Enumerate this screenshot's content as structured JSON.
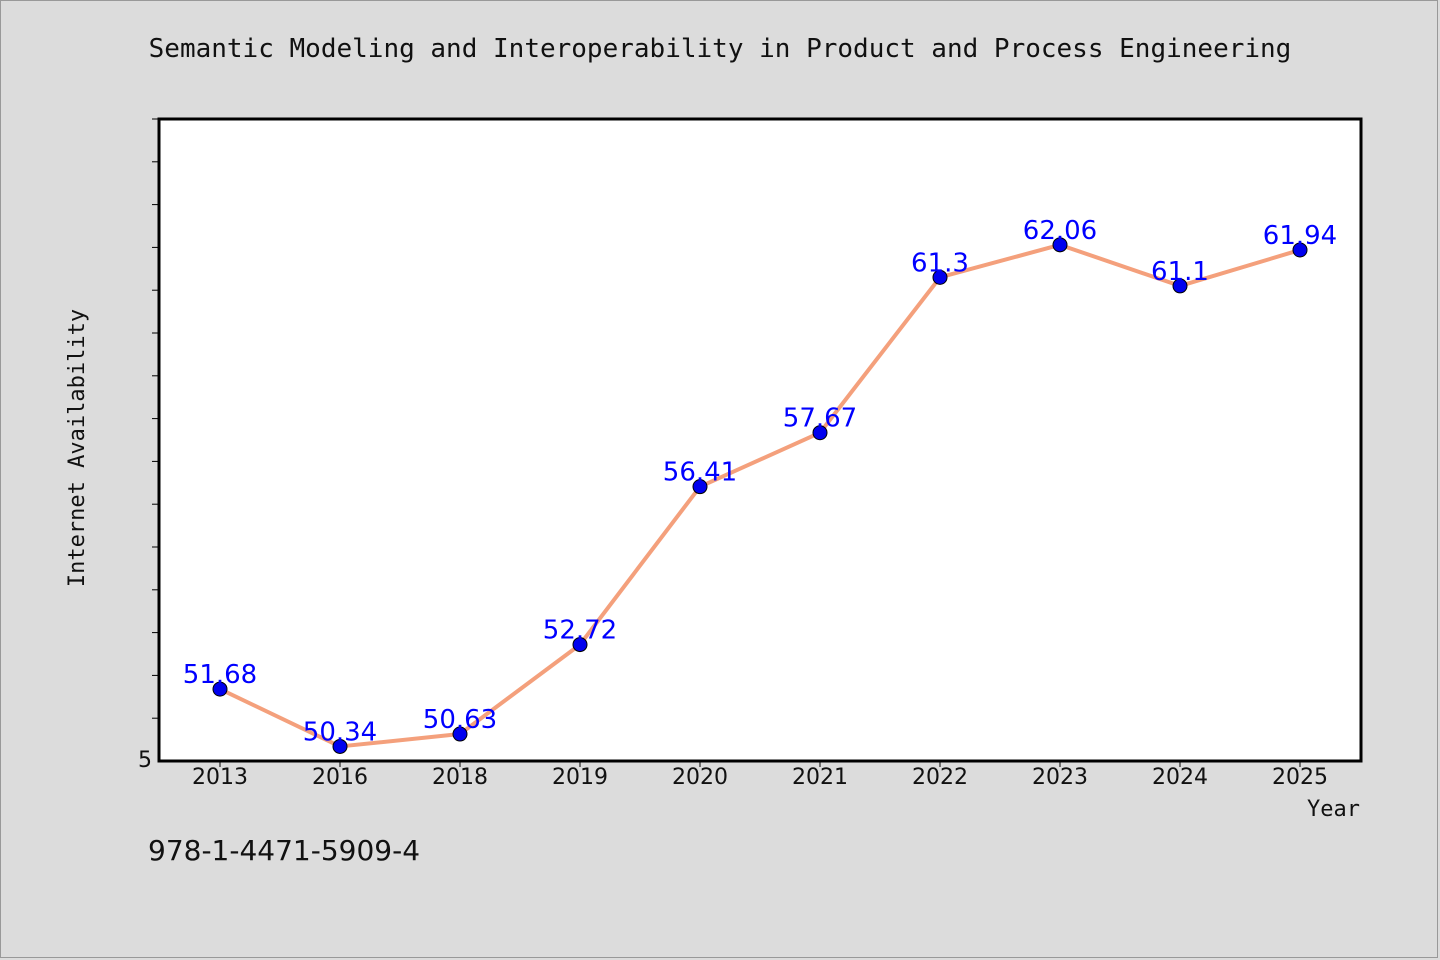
{
  "chart_data": {
    "type": "line",
    "title": "Semantic Modeling and Interoperability in Product and Process Engineering",
    "xlabel": "Year",
    "ylabel": "Internet Availability",
    "categories": [
      "2013",
      "2016",
      "2018",
      "2019",
      "2020",
      "2021",
      "2022",
      "2023",
      "2024",
      "2025"
    ],
    "series": [
      {
        "values": [
          51.68,
          50.34,
          50.63,
          52.72,
          56.41,
          57.67,
          61.3,
          62.06,
          61.1,
          61.94
        ],
        "labels": [
          "51.68",
          "50.34",
          "50.63",
          "52.72",
          "56.41",
          "57.67",
          "61.3",
          "62.06",
          "61.1",
          "61.94"
        ],
        "line_color": "#f4a07c",
        "marker_color": "#0000ee",
        "label_color": "#0000ff"
      }
    ],
    "ylim": [
      50,
      65
    ],
    "y_tick_label": "5",
    "grid": false,
    "legend": "none"
  },
  "footer": {
    "isbn": "978-1-4471-5909-4"
  },
  "colors": {
    "background": "#dcdcdc",
    "plot_background": "#ffffff",
    "axis": "#000000"
  }
}
